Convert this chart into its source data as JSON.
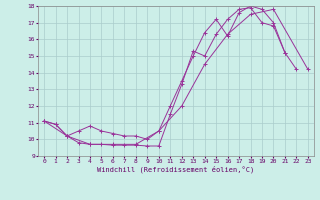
{
  "background_color": "#cceee8",
  "grid_color": "#aacccc",
  "line_color": "#993399",
  "xlim": [
    -0.5,
    23.5
  ],
  "ylim": [
    9,
    18
  ],
  "xlabel": "Windchill (Refroidissement éolien,°C)",
  "xticks": [
    0,
    1,
    2,
    3,
    4,
    5,
    6,
    7,
    8,
    9,
    10,
    11,
    12,
    13,
    14,
    15,
    16,
    17,
    18,
    19,
    20,
    21,
    22,
    23
  ],
  "yticks": [
    9,
    10,
    11,
    12,
    13,
    14,
    15,
    16,
    17,
    18
  ],
  "line1_x": [
    0,
    1,
    2,
    3,
    4,
    5,
    6,
    7,
    8,
    9,
    10,
    11,
    12,
    13,
    14,
    15,
    16,
    17,
    18,
    19,
    20,
    21,
    22
  ],
  "line1_y": [
    11.1,
    10.9,
    10.2,
    9.8,
    9.7,
    9.7,
    9.65,
    9.65,
    9.65,
    9.6,
    9.6,
    11.5,
    13.3,
    15.3,
    15.0,
    16.3,
    17.2,
    17.8,
    17.9,
    17.0,
    16.8,
    15.2,
    14.2
  ],
  "line2_x": [
    0,
    1,
    2,
    3,
    4,
    5,
    6,
    7,
    8,
    9,
    10,
    11,
    12,
    13,
    14,
    15,
    16,
    17,
    18,
    19,
    20,
    21
  ],
  "line2_y": [
    11.1,
    10.9,
    10.2,
    10.5,
    10.8,
    10.5,
    10.35,
    10.2,
    10.2,
    10.0,
    10.5,
    12.0,
    13.5,
    15.0,
    16.4,
    17.2,
    16.2,
    17.6,
    18.0,
    17.8,
    17.0,
    15.2
  ],
  "line3_x": [
    0,
    2,
    4,
    6,
    8,
    10,
    12,
    14,
    16,
    18,
    20,
    23
  ],
  "line3_y": [
    11.1,
    10.2,
    9.7,
    9.7,
    9.7,
    10.5,
    12.0,
    14.5,
    16.3,
    17.5,
    17.8,
    14.2
  ]
}
